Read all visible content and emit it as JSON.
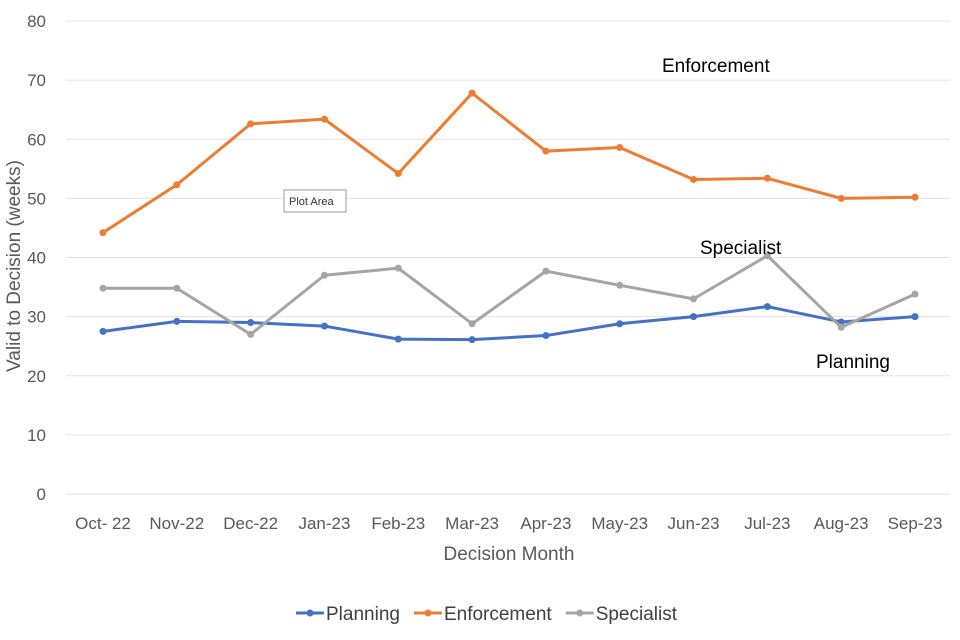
{
  "chart_data": {
    "type": "line",
    "title": "",
    "xlabel": "Decision Month",
    "ylabel": "Valid to Decision (weeks)",
    "ylim": [
      0,
      80
    ],
    "yticks": [
      0,
      10,
      20,
      30,
      40,
      50,
      60,
      70,
      80
    ],
    "grid": "horizontal",
    "legend_position": "bottom",
    "categories": [
      "Oct- 22",
      "Nov-22",
      "Dec-22",
      "Jan-23",
      "Feb-23",
      "Mar-23",
      "Apr-23",
      "May-23",
      "Jun-23",
      "Jul-23",
      "Aug-23",
      "Sep-23"
    ],
    "series": [
      {
        "name": "Planning",
        "color": "#4472C4",
        "values": [
          27.5,
          29.2,
          29.0,
          28.4,
          26.2,
          26.1,
          26.8,
          28.8,
          30.0,
          31.7,
          29.1,
          30.0
        ]
      },
      {
        "name": "Enforcement",
        "color": "#ED7D31",
        "values": [
          44.2,
          52.3,
          62.6,
          63.4,
          54.2,
          67.8,
          58.0,
          58.6,
          53.2,
          53.4,
          50.0,
          50.2
        ]
      },
      {
        "name": "Specialist",
        "color": "#A5A5A5",
        "values": [
          34.8,
          34.8,
          27.0,
          37.0,
          38.2,
          28.8,
          37.7,
          35.3,
          33.0,
          40.3,
          28.2,
          33.8
        ]
      }
    ],
    "annotations": {
      "enforcement": "Enforcement",
      "specialist": "Specialist",
      "planning": "Planning",
      "plot_area": "Plot Area"
    }
  }
}
